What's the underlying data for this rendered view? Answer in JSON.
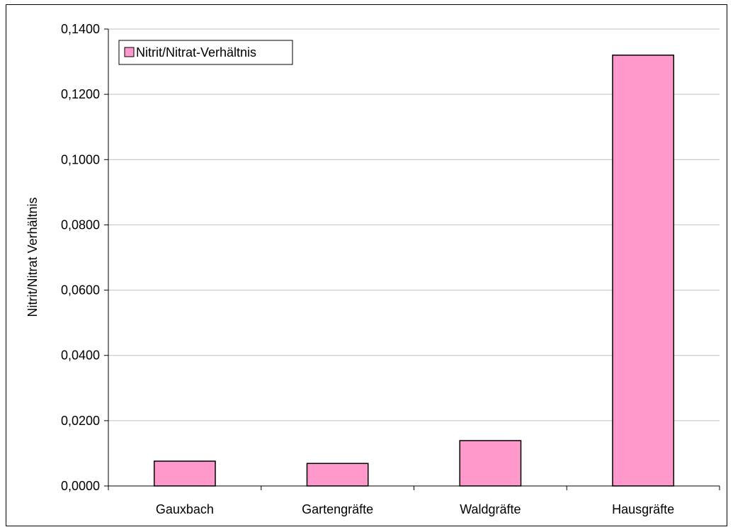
{
  "chart_data": {
    "type": "bar",
    "categories": [
      "Gauxbach",
      "Gartengräfte",
      "Waldgräfte",
      "Hausgräfte"
    ],
    "series": [
      {
        "name": "Nitrit/Nitrat-Verhältnis",
        "values": [
          0.0076,
          0.0069,
          0.0139,
          0.132
        ]
      }
    ],
    "title": "",
    "xlabel": "",
    "ylabel": "Nitrit/Nitrat Verhältnis",
    "ylim": [
      0,
      0.14
    ],
    "yticks": [
      0,
      0.02,
      0.04,
      0.06,
      0.08,
      0.1,
      0.12,
      0.14
    ],
    "ytick_labels": [
      "0,0000",
      "0,0200",
      "0,0400",
      "0,0600",
      "0,0800",
      "0,1000",
      "0,1200",
      "0,1400"
    ],
    "grid": true,
    "legend": {
      "placement": "top-left",
      "entries": [
        "Nitrit/Nitrat-Verhältnis"
      ]
    },
    "colors": {
      "bar_fill": "#FF99CC",
      "bar_stroke": "#000000",
      "grid": "#C0C0C0",
      "axis": "#000000"
    }
  }
}
